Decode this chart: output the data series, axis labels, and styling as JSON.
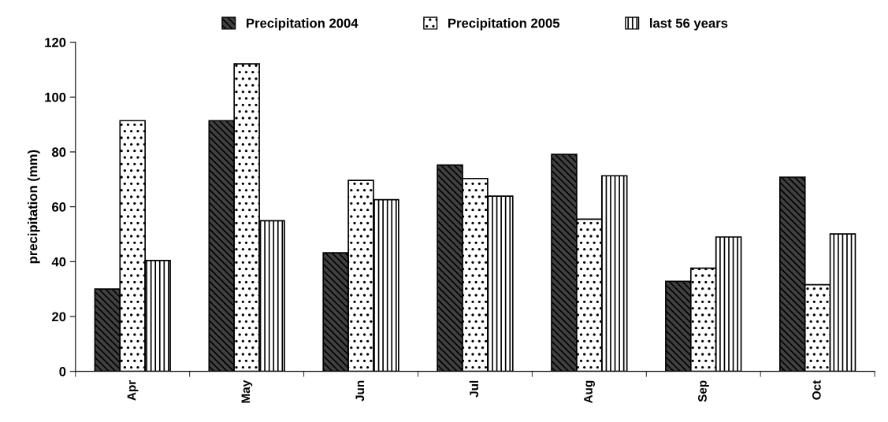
{
  "chart_data": {
    "type": "bar",
    "ylabel": "precipitation (mm)",
    "categories": [
      "Apr",
      "May",
      "Jun",
      "Jul",
      "Aug",
      "Sep",
      "Oct"
    ],
    "series": [
      {
        "name": "Precipitation 2004",
        "color": "#404040",
        "values": [
          30,
          91.4,
          43.2,
          75.2,
          79.1,
          32.8,
          70.8
        ]
      },
      {
        "name": "Precipitation 2005",
        "color": "#ffffff",
        "values": [
          91.4,
          112.1,
          69.6,
          70.3,
          55.5,
          37.6,
          31.6
        ]
      },
      {
        "name": "last 56 years",
        "color": "#ffffff",
        "values": [
          40.4,
          54.9,
          62.6,
          63.9,
          71.3,
          49.0,
          50.1
        ]
      }
    ],
    "ylim": [
      0,
      120
    ],
    "yticks": [
      0,
      20,
      40,
      60,
      80,
      100,
      120
    ],
    "grid": false,
    "legend": "top"
  }
}
